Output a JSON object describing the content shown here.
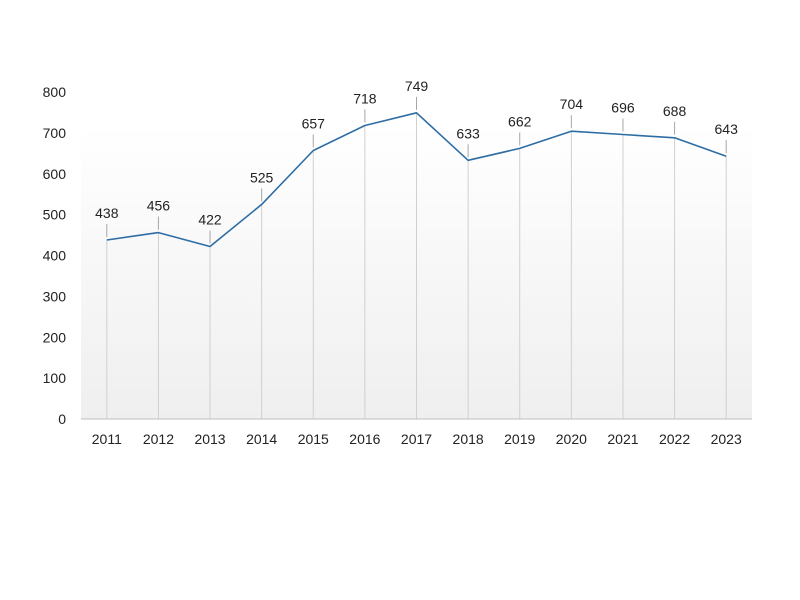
{
  "chart_data": {
    "type": "line",
    "categories": [
      "2011",
      "2012",
      "2013",
      "2014",
      "2015",
      "2016",
      "2017",
      "2018",
      "2019",
      "2020",
      "2021",
      "2022",
      "2023"
    ],
    "series": [
      {
        "values": [
          438,
          456,
          422,
          525,
          657,
          718,
          749,
          633,
          662,
          704,
          696,
          688,
          643
        ]
      }
    ],
    "title": "",
    "xlabel": "",
    "ylabel": "",
    "ylim": [
      0,
      800
    ],
    "yticks": [
      "0",
      "100",
      "200",
      "300",
      "400",
      "500",
      "600",
      "700",
      "800"
    ],
    "grid": "vertical drop lines",
    "legend": "none",
    "data_labels": true,
    "colors": {
      "line": "#2e6da4",
      "drop_line": "#d0d0d0",
      "axis": "#bfbfbf",
      "plot_fill_top": "#ffffff",
      "plot_fill_bottom": "#efefef",
      "text": "#222222"
    }
  }
}
